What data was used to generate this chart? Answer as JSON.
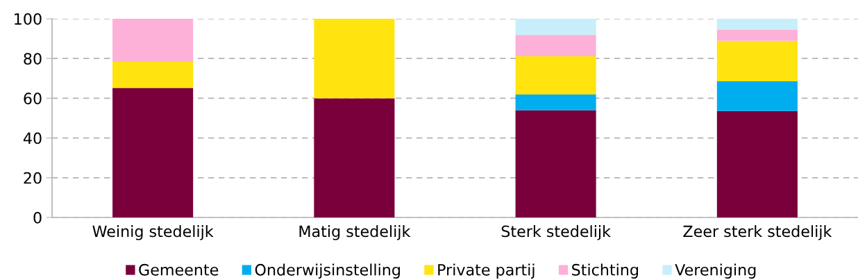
{
  "chart_data": {
    "type": "bar",
    "stacked": true,
    "categories": [
      "Weinig stedelijk",
      "Matig stedelijk",
      "Sterk stedelijk",
      "Zeer sterk stedelijk"
    ],
    "series": [
      {
        "name": "Gemeente",
        "color": "#7a003c",
        "values": [
          65.2,
          60,
          53.9,
          53.6
        ]
      },
      {
        "name": "Onderwijsinstelling",
        "color": "#00aeef",
        "values": [
          null,
          null,
          8.0,
          14.9
        ]
      },
      {
        "name": "Private partij",
        "color": "#ffe40f",
        "values": [
          13.1,
          40,
          19.2,
          20.4
        ]
      },
      {
        "name": "Stichting",
        "color": "#fdb0d8",
        "values": [
          21.7,
          null,
          10.8,
          5.5
        ]
      },
      {
        "name": "Vereniging",
        "color": "#c8eefb",
        "values": [
          null,
          null,
          8.1,
          5.6
        ]
      }
    ],
    "ylim": [
      0,
      100
    ],
    "yticks": [
      0,
      20,
      40,
      60,
      80,
      100
    ],
    "grid": "y",
    "legend": "bottom"
  }
}
